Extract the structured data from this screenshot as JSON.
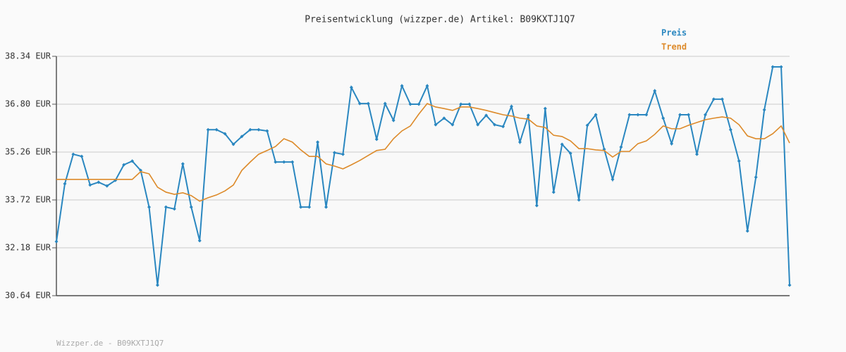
{
  "chart_data": {
    "type": "line",
    "title": "Preisentwicklung (wizzper.de) Artikel: B09KXTJ1Q7",
    "footer": "Wizzper.de - B09KXTJ1Q7",
    "categories": [
      null,
      null,
      null,
      null,
      null,
      null,
      null,
      null,
      null,
      null,
      null,
      null,
      null,
      null,
      null,
      null,
      null,
      null,
      null,
      null,
      null,
      null,
      null,
      null,
      null,
      null,
      null,
      null,
      null,
      null,
      null,
      null,
      null,
      null,
      null,
      null,
      null,
      null,
      null,
      null,
      null,
      null,
      null,
      null,
      null,
      null,
      null,
      null,
      null,
      null,
      null,
      null,
      null,
      null,
      null,
      null,
      null,
      null,
      null,
      null,
      null,
      null,
      null,
      null,
      null,
      null,
      null,
      null,
      null,
      null,
      null,
      null,
      null,
      null,
      null,
      null,
      null,
      null,
      null,
      null,
      null,
      null,
      null,
      null,
      null,
      null,
      null,
      null
    ],
    "series": [
      {
        "name": "Preis",
        "color": "#2a87c0",
        "markers": true,
        "values": [
          32.38,
          34.24,
          35.19,
          35.12,
          34.2,
          34.29,
          34.17,
          34.35,
          34.85,
          34.97,
          34.67,
          33.49,
          30.98,
          33.49,
          33.43,
          34.88,
          33.49,
          32.41,
          35.98,
          35.98,
          35.85,
          35.51,
          35.76,
          35.98,
          35.98,
          35.94,
          34.94,
          34.94,
          34.94,
          33.49,
          33.49,
          35.58,
          33.49,
          35.24,
          35.19,
          37.34,
          36.82,
          36.82,
          35.67,
          36.82,
          36.28,
          37.39,
          36.8,
          36.8,
          37.39,
          36.14,
          36.35,
          36.14,
          36.8,
          36.8,
          36.14,
          36.44,
          36.14,
          36.08,
          36.73,
          35.58,
          36.44,
          33.54,
          36.66,
          33.97,
          35.51,
          35.22,
          33.72,
          36.12,
          36.46,
          35.35,
          34.38,
          35.42,
          36.46,
          36.46,
          36.46,
          37.23,
          36.35,
          35.53,
          36.46,
          36.46,
          35.19,
          36.46,
          36.96,
          36.96,
          35.98,
          34.97,
          32.72,
          34.45,
          36.62,
          38.0,
          38.0,
          30.98
        ]
      },
      {
        "name": "Trend",
        "color": "#dd8a2a",
        "markers": false,
        "values": [
          34.38,
          34.38,
          34.38,
          34.38,
          34.38,
          34.38,
          34.38,
          34.38,
          34.38,
          34.38,
          34.63,
          34.56,
          34.13,
          33.97,
          33.9,
          33.95,
          33.86,
          33.68,
          33.79,
          33.88,
          34.01,
          34.2,
          34.67,
          34.94,
          35.19,
          35.31,
          35.44,
          35.69,
          35.58,
          35.33,
          35.12,
          35.12,
          34.88,
          34.81,
          34.72,
          34.85,
          34.99,
          35.15,
          35.31,
          35.35,
          35.69,
          35.94,
          36.1,
          36.48,
          36.82,
          36.71,
          36.66,
          36.6,
          36.71,
          36.71,
          36.66,
          36.6,
          36.53,
          36.46,
          36.42,
          36.35,
          36.32,
          36.1,
          36.05,
          35.8,
          35.76,
          35.62,
          35.37,
          35.37,
          35.33,
          35.31,
          35.1,
          35.28,
          35.28,
          35.53,
          35.62,
          35.83,
          36.1,
          36.01,
          36.01,
          36.12,
          36.21,
          36.3,
          36.35,
          36.39,
          36.35,
          36.14,
          35.78,
          35.69,
          35.69,
          35.85,
          36.1,
          35.55
        ]
      }
    ],
    "ylim": [
      30.64,
      38.34
    ],
    "yticks": [
      {
        "value": 30.64,
        "label": "30.64 EUR"
      },
      {
        "value": 32.18,
        "label": "32.18 EUR"
      },
      {
        "value": 33.72,
        "label": "33.72 EUR"
      },
      {
        "value": 35.26,
        "label": "35.26 EUR"
      },
      {
        "value": 36.8,
        "label": "36.80 EUR"
      },
      {
        "value": 38.34,
        "label": "38.34 EUR"
      }
    ],
    "grid": true
  }
}
